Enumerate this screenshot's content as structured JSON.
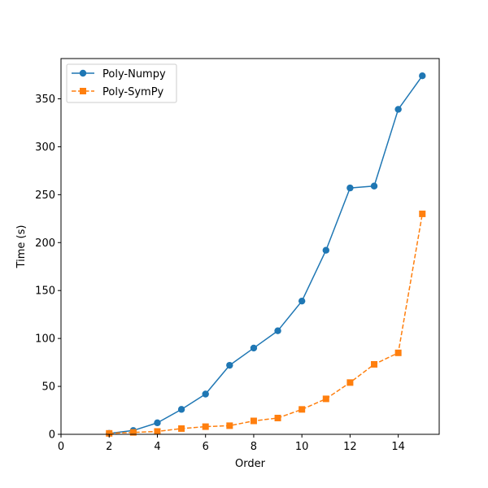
{
  "chart_data": {
    "type": "line",
    "title": "",
    "xlabel": "Order",
    "ylabel": "Time (s)",
    "xlim": [
      0,
      15.7
    ],
    "ylim": [
      0,
      392
    ],
    "xticks": [
      0,
      2,
      4,
      6,
      8,
      10,
      12,
      14
    ],
    "yticks": [
      0,
      50,
      100,
      150,
      200,
      250,
      300,
      350
    ],
    "grid": false,
    "legend_position": "top-left",
    "x": [
      2,
      3,
      4,
      5,
      6,
      7,
      8,
      9,
      10,
      11,
      12,
      13,
      14,
      15
    ],
    "series": [
      {
        "name": "Poly-Numpy",
        "color": "#1f77b4",
        "marker": "circle",
        "linestyle": "solid",
        "values": [
          1,
          4,
          12,
          26,
          42,
          72,
          90,
          108,
          139,
          192,
          257,
          259,
          339,
          374
        ]
      },
      {
        "name": "Poly-SymPy",
        "color": "#ff7f0e",
        "marker": "square",
        "linestyle": "dashed",
        "values": [
          1,
          2,
          3,
          6,
          8,
          9,
          14,
          17,
          26,
          37,
          54,
          73,
          85,
          230
        ]
      }
    ]
  }
}
